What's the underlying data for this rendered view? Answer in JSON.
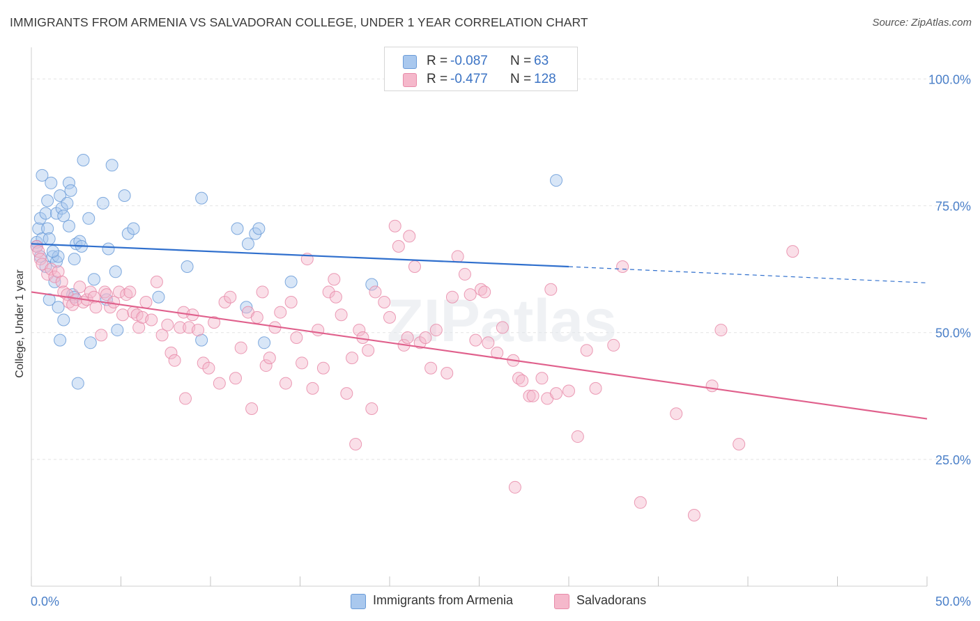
{
  "title": "IMMIGRANTS FROM ARMENIA VS SALVADORAN COLLEGE, UNDER 1 YEAR CORRELATION CHART",
  "source": "Source: ZipAtlas.com",
  "watermark": "ZIPatlas",
  "legend": {
    "rows": [
      {
        "r_label": "R =",
        "r_value": "-0.087",
        "n_label": "N =",
        "n_value": "63"
      },
      {
        "r_label": "R =",
        "r_value": "-0.477",
        "n_label": "N =",
        "n_value": "128"
      }
    ]
  },
  "bottom_legend": [
    {
      "label": "Immigrants from Armenia"
    },
    {
      "label": "Salvadorans"
    }
  ],
  "chart_data": {
    "type": "scatter",
    "title": "IMMIGRANTS FROM ARMENIA VS SALVADORAN COLLEGE, UNDER 1 YEAR CORRELATION CHART",
    "xlabel": "",
    "ylabel": "College, Under 1 year",
    "xlim": [
      0,
      50
    ],
    "ylim": [
      0,
      105
    ],
    "x_tick_labels": [
      "0.0%",
      "50.0%"
    ],
    "y_tick_values": [
      25,
      50,
      75,
      100
    ],
    "y_tick_labels": [
      "25.0%",
      "50.0%",
      "75.0%",
      "100.0%"
    ],
    "grid": true,
    "legend_position": "top-center",
    "colors": {
      "armenia_fill": "#a9c8ee",
      "armenia_stroke": "#6a9bd8",
      "armenia_line": "#2f6fcd",
      "salvadoran_fill": "#f5b8cb",
      "salvadoran_stroke": "#e88aa8",
      "salvadoran_line": "#e0608c"
    },
    "series": [
      {
        "name": "Immigrants from Armenia",
        "trend": {
          "x0": 0,
          "y0": 67.5,
          "x1": 30,
          "y1": 63.0,
          "dash_x1": 50,
          "dash_y1": 59.8
        },
        "points": [
          [
            0.3,
            67.8
          ],
          [
            0.4,
            70.5
          ],
          [
            0.5,
            72.5
          ],
          [
            0.6,
            68.5
          ],
          [
            0.5,
            65.0
          ],
          [
            0.6,
            81.0
          ],
          [
            0.8,
            73.5
          ],
          [
            0.9,
            76.0
          ],
          [
            0.9,
            70.5
          ],
          [
            1.0,
            68.5
          ],
          [
            1.0,
            56.5
          ],
          [
            1.1,
            79.5
          ],
          [
            1.2,
            65.0
          ],
          [
            1.3,
            60.0
          ],
          [
            1.4,
            64.0
          ],
          [
            1.4,
            73.5
          ],
          [
            1.5,
            65.0
          ],
          [
            1.6,
            77.0
          ],
          [
            1.7,
            74.5
          ],
          [
            1.5,
            55.0
          ],
          [
            1.6,
            48.5
          ],
          [
            1.8,
            52.5
          ],
          [
            1.8,
            73.0
          ],
          [
            2.0,
            75.5
          ],
          [
            2.1,
            71.0
          ],
          [
            2.1,
            79.5
          ],
          [
            2.2,
            78.0
          ],
          [
            2.3,
            57.5
          ],
          [
            2.4,
            64.5
          ],
          [
            2.5,
            67.5
          ],
          [
            2.7,
            68.0
          ],
          [
            2.6,
            40.0
          ],
          [
            2.8,
            67.0
          ],
          [
            2.9,
            84.0
          ],
          [
            3.2,
            72.5
          ],
          [
            3.3,
            48.0
          ],
          [
            3.5,
            60.5
          ],
          [
            4.0,
            75.5
          ],
          [
            4.2,
            56.5
          ],
          [
            4.3,
            66.5
          ],
          [
            4.5,
            83.0
          ],
          [
            4.7,
            62.0
          ],
          [
            4.8,
            50.5
          ],
          [
            5.2,
            77.0
          ],
          [
            5.4,
            69.5
          ],
          [
            5.7,
            70.5
          ],
          [
            7.1,
            57.0
          ],
          [
            8.7,
            63.0
          ],
          [
            9.5,
            48.5
          ],
          [
            9.5,
            76.5
          ],
          [
            11.5,
            70.5
          ],
          [
            12.0,
            55.0
          ],
          [
            12.1,
            67.5
          ],
          [
            12.5,
            69.5
          ],
          [
            12.7,
            70.5
          ],
          [
            13.0,
            48.0
          ],
          [
            14.5,
            60.0
          ],
          [
            19.0,
            59.5
          ],
          [
            29.3,
            80.0
          ],
          [
            0.3,
            67.0
          ],
          [
            0.8,
            63.0
          ],
          [
            1.2,
            66.0
          ],
          [
            2.4,
            57.0
          ]
        ]
      },
      {
        "name": "Salvadorans",
        "trend": {
          "x0": 0,
          "y0": 58.0,
          "x1": 50,
          "y1": 33.0
        },
        "points": [
          [
            0.3,
            67.0
          ],
          [
            0.4,
            66.0
          ],
          [
            0.5,
            64.5
          ],
          [
            0.6,
            63.5
          ],
          [
            0.9,
            61.5
          ],
          [
            1.1,
            62.5
          ],
          [
            1.3,
            61.0
          ],
          [
            1.5,
            62.0
          ],
          [
            1.7,
            60.0
          ],
          [
            1.8,
            58.0
          ],
          [
            2.0,
            57.5
          ],
          [
            2.1,
            56.0
          ],
          [
            2.3,
            55.5
          ],
          [
            2.5,
            56.5
          ],
          [
            2.7,
            59.0
          ],
          [
            2.9,
            56.0
          ],
          [
            3.1,
            56.5
          ],
          [
            3.3,
            58.0
          ],
          [
            3.5,
            57.0
          ],
          [
            3.6,
            55.0
          ],
          [
            3.9,
            49.5
          ],
          [
            4.1,
            58.0
          ],
          [
            4.2,
            57.5
          ],
          [
            4.4,
            55.0
          ],
          [
            4.6,
            56.0
          ],
          [
            4.9,
            58.0
          ],
          [
            5.1,
            53.5
          ],
          [
            5.3,
            57.5
          ],
          [
            5.5,
            58.0
          ],
          [
            5.7,
            54.0
          ],
          [
            5.9,
            53.5
          ],
          [
            6.0,
            51.0
          ],
          [
            6.2,
            53.0
          ],
          [
            6.4,
            56.0
          ],
          [
            6.7,
            52.5
          ],
          [
            7.0,
            60.0
          ],
          [
            7.3,
            49.5
          ],
          [
            7.6,
            51.5
          ],
          [
            7.8,
            46.0
          ],
          [
            8.0,
            44.5
          ],
          [
            8.3,
            51.0
          ],
          [
            8.5,
            54.0
          ],
          [
            8.6,
            37.0
          ],
          [
            8.8,
            51.0
          ],
          [
            9.0,
            53.5
          ],
          [
            9.3,
            50.5
          ],
          [
            9.6,
            44.0
          ],
          [
            9.9,
            43.0
          ],
          [
            10.2,
            52.0
          ],
          [
            10.5,
            40.0
          ],
          [
            10.8,
            56.0
          ],
          [
            11.1,
            57.0
          ],
          [
            11.4,
            41.0
          ],
          [
            11.7,
            47.0
          ],
          [
            12.1,
            54.0
          ],
          [
            12.3,
            35.0
          ],
          [
            12.6,
            53.0
          ],
          [
            12.9,
            58.0
          ],
          [
            13.1,
            43.5
          ],
          [
            13.3,
            45.0
          ],
          [
            13.6,
            51.0
          ],
          [
            13.9,
            54.0
          ],
          [
            14.2,
            40.0
          ],
          [
            14.5,
            56.0
          ],
          [
            14.8,
            49.0
          ],
          [
            15.1,
            44.0
          ],
          [
            15.4,
            64.5
          ],
          [
            15.7,
            39.0
          ],
          [
            16.0,
            50.5
          ],
          [
            16.3,
            43.0
          ],
          [
            16.6,
            58.0
          ],
          [
            16.9,
            60.5
          ],
          [
            17.3,
            53.5
          ],
          [
            17.6,
            38.0
          ],
          [
            17.9,
            45.0
          ],
          [
            18.1,
            28.0
          ],
          [
            18.3,
            50.5
          ],
          [
            18.5,
            49.0
          ],
          [
            18.8,
            46.5
          ],
          [
            19.0,
            35.0
          ],
          [
            19.2,
            58.0
          ],
          [
            19.7,
            56.0
          ],
          [
            20.0,
            53.0
          ],
          [
            20.3,
            71.0
          ],
          [
            20.5,
            67.0
          ],
          [
            20.8,
            47.5
          ],
          [
            21.1,
            69.0
          ],
          [
            21.4,
            63.0
          ],
          [
            21.7,
            48.0
          ],
          [
            22.0,
            49.0
          ],
          [
            22.3,
            43.0
          ],
          [
            22.6,
            50.5
          ],
          [
            23.2,
            42.0
          ],
          [
            23.5,
            57.0
          ],
          [
            23.8,
            65.0
          ],
          [
            24.2,
            61.5
          ],
          [
            24.5,
            57.5
          ],
          [
            24.8,
            48.5
          ],
          [
            25.1,
            58.5
          ],
          [
            25.3,
            58.0
          ],
          [
            25.5,
            48.0
          ],
          [
            26.0,
            46.0
          ],
          [
            26.3,
            51.0
          ],
          [
            26.9,
            44.5
          ],
          [
            27.2,
            41.0
          ],
          [
            27.4,
            40.5
          ],
          [
            27.8,
            37.5
          ],
          [
            28.0,
            37.5
          ],
          [
            28.5,
            41.0
          ],
          [
            28.8,
            37.0
          ],
          [
            29.0,
            58.5
          ],
          [
            29.3,
            38.0
          ],
          [
            30.0,
            38.5
          ],
          [
            30.5,
            29.5
          ],
          [
            31.0,
            46.5
          ],
          [
            31.5,
            39.0
          ],
          [
            32.5,
            47.5
          ],
          [
            33.0,
            63.0
          ],
          [
            34.0,
            16.5
          ],
          [
            36.0,
            34.0
          ],
          [
            37.0,
            14.0
          ],
          [
            38.0,
            39.5
          ],
          [
            38.5,
            50.5
          ],
          [
            39.5,
            28.0
          ],
          [
            42.5,
            66.0
          ],
          [
            27.0,
            19.5
          ],
          [
            17.0,
            57.0
          ],
          [
            21.0,
            49.0
          ]
        ]
      }
    ]
  }
}
